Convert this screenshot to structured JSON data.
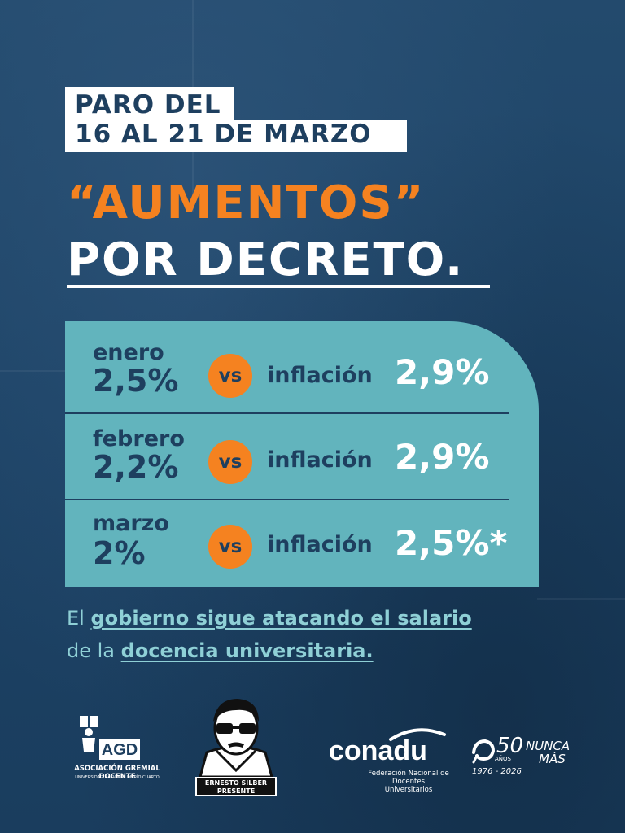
{
  "strike": {
    "line1": "PARO DEL",
    "line2": "16 AL 21 DE MARZO"
  },
  "headline": {
    "line1": "“AUMENTOS”",
    "line2": "POR DECRETO."
  },
  "comparison": {
    "vs_label": "vs",
    "inflation_label": "inflación",
    "rows": [
      {
        "month": "enero",
        "raise": "2,5%",
        "inflation": "2,9%"
      },
      {
        "month": "febrero",
        "raise": "2,2%",
        "inflation": "2,9%"
      },
      {
        "month": "marzo",
        "raise": "2%",
        "inflation": "2,5%*"
      }
    ]
  },
  "footer": {
    "line1_prefix": "El ",
    "line1_emphasis": "gobierno sigue atacando el salario",
    "line2_prefix": "de la ",
    "line2_emphasis": "docencia universitaria."
  },
  "logos": {
    "agd": {
      "mark": "AGD",
      "name": "ASOCIACIÓN GREMIAL DOCENTE",
      "sub": "UNIVERSIDAD NACIONAL DE RÍO CUARTO"
    },
    "silber": {
      "line1": "ERNESTO SILBER",
      "line2": "PRESENTE"
    },
    "conadu": {
      "name": "conadu",
      "sub1": "Federación Nacional de",
      "sub2": "Docentes Universitarios"
    },
    "nunca_mas": {
      "number": "50",
      "anos": "AÑOS",
      "nunca": "NUNCA",
      "mas": "MÁS",
      "years": "1976 - 2026"
    }
  },
  "colors": {
    "background": "#1e4467",
    "orange": "#f58220",
    "teal_panel": "#62b4bd",
    "teal_text": "#8fd0d6",
    "navy_text": "#1e3f5f"
  }
}
